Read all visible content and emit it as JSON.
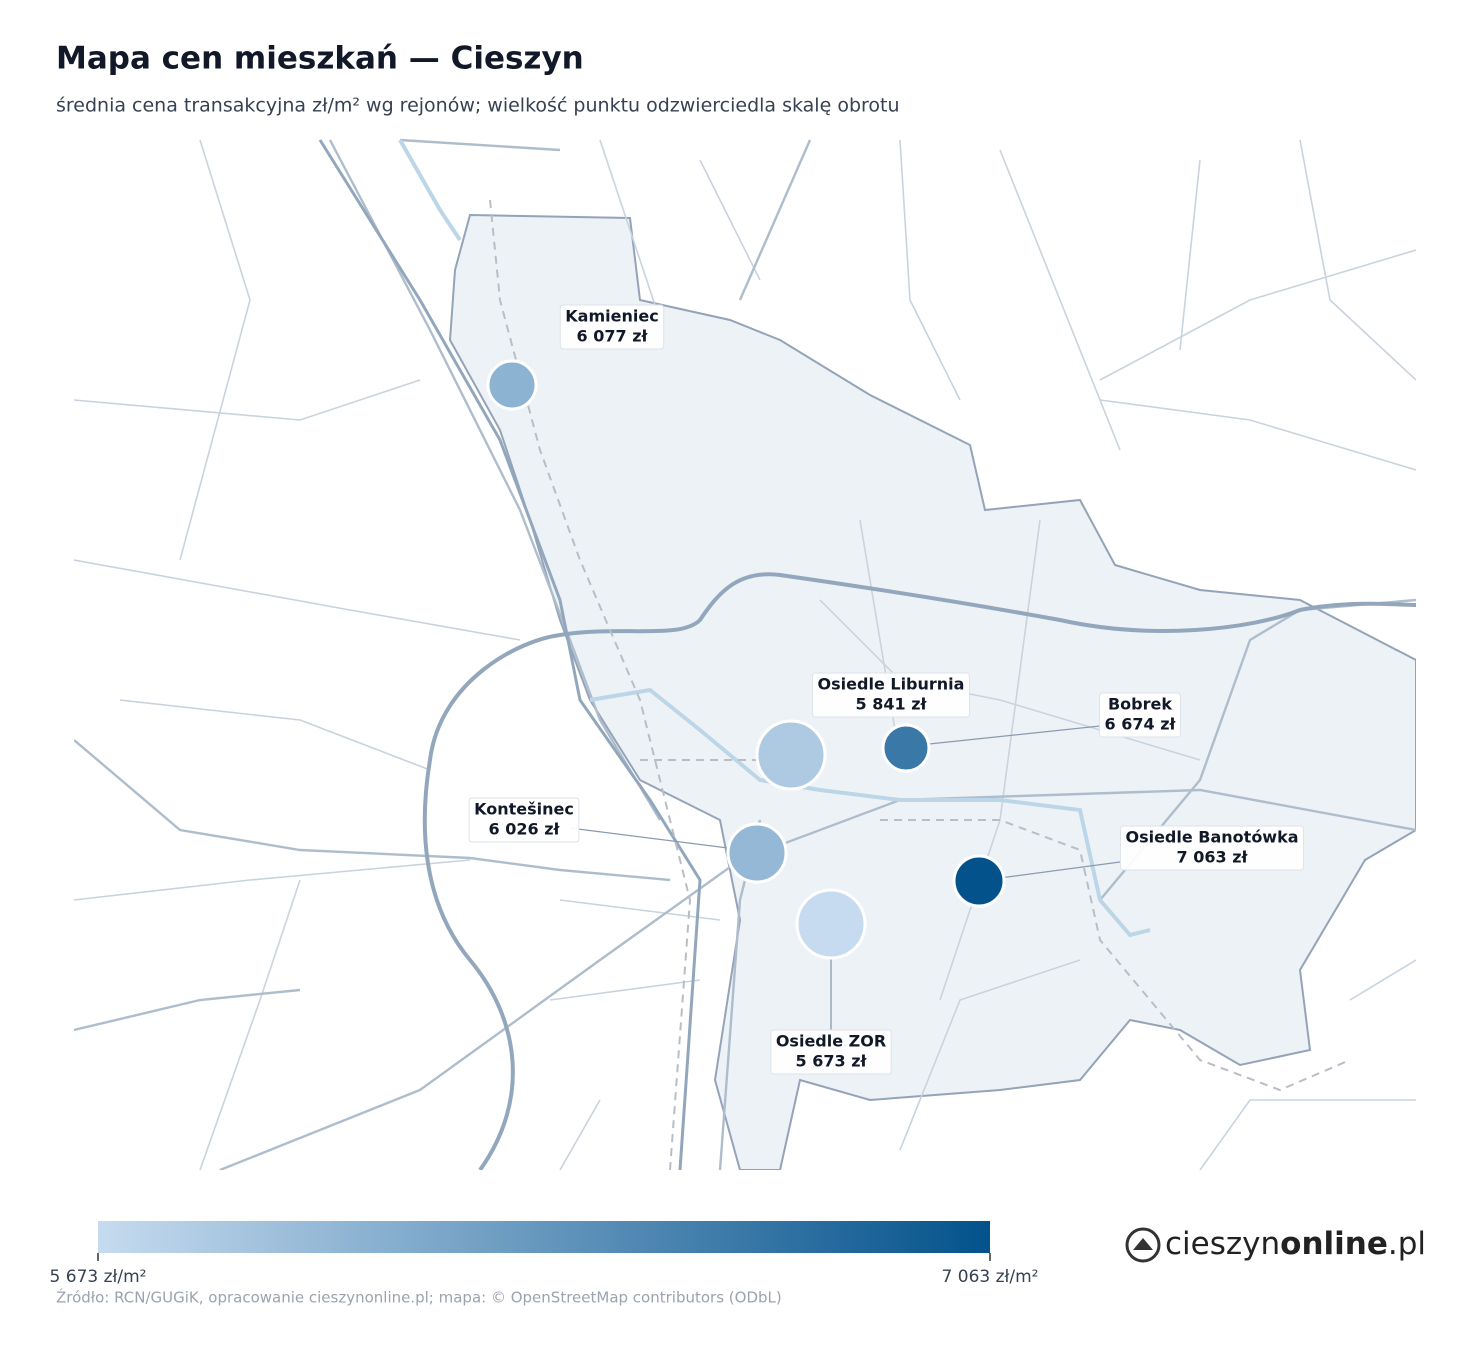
{
  "chart_data": {
    "type": "bubble-map",
    "title": "Mapa cen mieszkań — Cieszyn",
    "subtitle": "średnia cena transakcyjna zł/m² wg rejonów; wielkość punktu odzwierciedla skalę obrotu",
    "categories": [
      "Kamieniec",
      "Osiedle Liburnia",
      "Bobrek",
      "Kontešinec",
      "Osiedle Banotówka",
      "Osiedle ZOR"
    ],
    "values": [
      6077,
      5841,
      6674,
      6026,
      7063,
      5673
    ],
    "value_labels": [
      "6 077 zł",
      "5 841 zł",
      "6 674 zł",
      "6 026 zł",
      "7 063 zł",
      "5 673 zł"
    ],
    "colormap": [
      "#c6dbef",
      "#03528c"
    ],
    "clim": [
      5673,
      7063
    ],
    "cticks": [
      {
        "value": 5673,
        "label": "5 673 zł/m²"
      },
      {
        "value": 7063,
        "label": "7 063 zł/m²"
      }
    ],
    "source": "Źródło: RCN/GUGiK, opracowanie cieszynonline.pl; mapa: © OpenStreetMap contributors (ODbL)",
    "logo": [
      "cieszyn",
      "online",
      ".pl"
    ]
  }
}
